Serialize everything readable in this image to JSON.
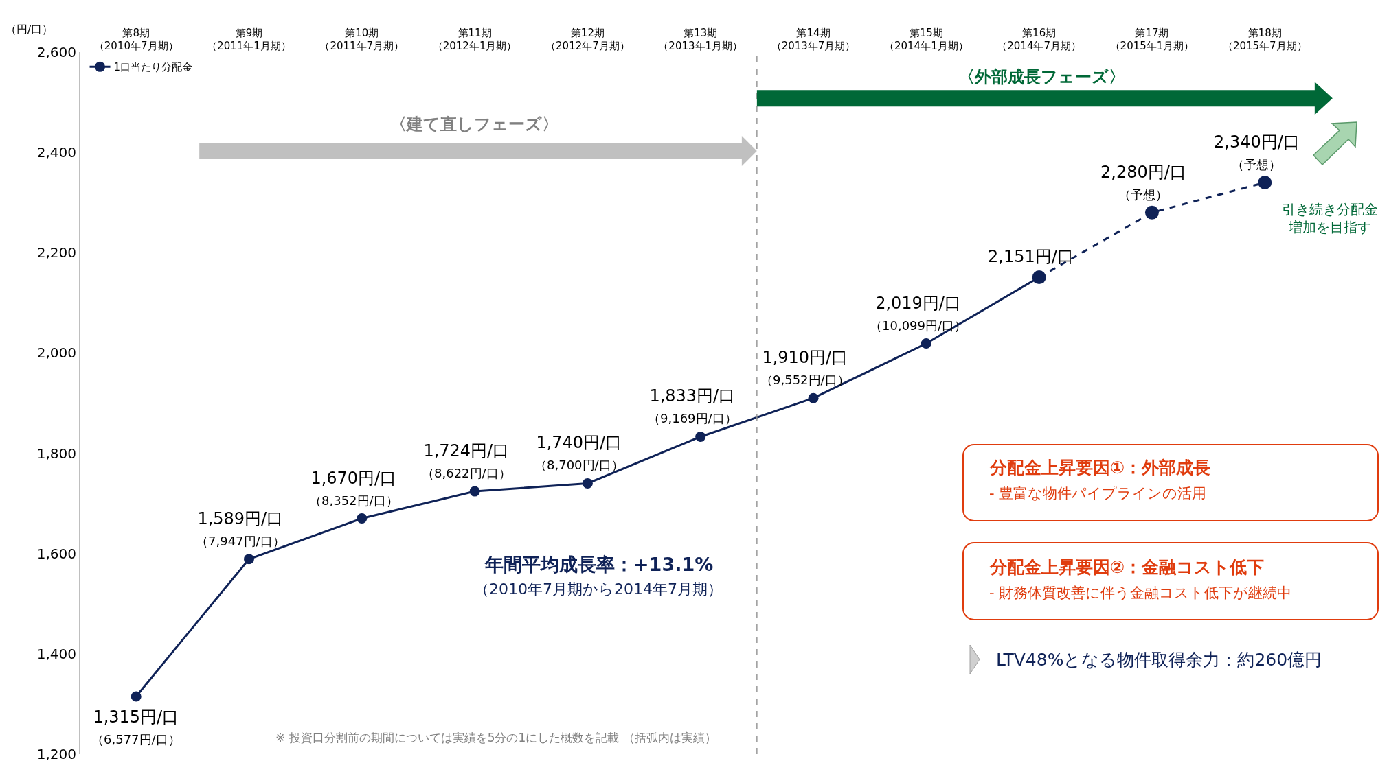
{
  "chart_data": {
    "type": "line",
    "ylabel": "（円/口）",
    "legend": "top left",
    "marker": "circle",
    "categories": [
      "第8期（2010年7月期）",
      "第9期（2011年1月期）",
      "第10期（2011年7月期）",
      "第11期（2012年1月期）",
      "第12期（2012年7月期）",
      "第13期（2013年1月期）",
      "第14期（2013年7月期）",
      "第15期（2014年1月期）",
      "第16期（2014年7月期）",
      "第17期（2015年1月期）",
      "第18期（2015年7月期）"
    ],
    "ylim": [
      1200,
      2600
    ],
    "yticks": [
      {
        "value": 1200,
        "label": "1,200"
      },
      {
        "value": 1400,
        "label": "1,400"
      },
      {
        "value": 1600,
        "label": "1,600"
      },
      {
        "value": 1800,
        "label": "1,800"
      },
      {
        "value": 2000,
        "label": "2,000"
      },
      {
        "value": 2200,
        "label": "2,200"
      },
      {
        "value": 2400,
        "label": "2,400"
      },
      {
        "value": 2600,
        "label": "2,600"
      }
    ],
    "series": [
      {
        "name": "1口当たり分配金",
        "color": "#0f2257",
        "line_style": "solid",
        "values": [
          1315,
          1589,
          1670,
          1724,
          1740,
          1833,
          1910,
          2019,
          2151,
          null,
          null
        ],
        "value_labels": [
          "1,315円/口（6,577円/口）",
          "1,589円/口（7,947円/口）",
          "1,670円/口（8,352円/口）",
          "1,724円/口（8,622円/口）",
          "1,740円/口（8,700円/口）",
          "1,833円/口（9,169円/口）",
          "1,910円/口（9,552円/口）",
          "2,019円/口（10,099円/口）",
          "2,151円/口",
          null,
          null
        ]
      },
      {
        "color": "#0f2257",
        "line_style": "dashed",
        "values": [
          null,
          null,
          null,
          null,
          null,
          null,
          null,
          null,
          2151,
          2280,
          2340
        ],
        "value_labels": [
          null,
          null,
          null,
          null,
          null,
          null,
          null,
          null,
          null,
          "2,280円/口（予想）",
          "2,340円/口（予想）"
        ]
      }
    ],
    "annotations": [
      "〈建て直しフェーズ〉",
      "〈外部成長フェーズ〉",
      "年間平均成長率：+13.1%",
      "（2010年7月期から2014年7月期）",
      "分配金上昇要因①：外部成長",
      "- 豊富な物件パイプラインの活用",
      "分配金上昇要因②：金融コスト低下",
      "- 財務体質改善に伴う金融コスト低下が継続中",
      "LTV48%となる物件取得余力：約260億円",
      "引き続き分配金増加を目指す",
      "※ 投資口分割前の期間については実績を5分の1にした概数を記載 （括弧内は実績）"
    ]
  }
}
